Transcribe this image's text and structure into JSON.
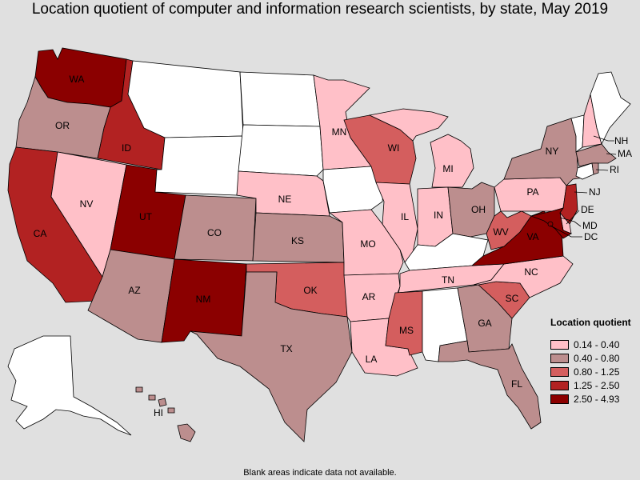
{
  "title": "Location quotient of computer and information research scientists, by state, May 2019",
  "footnote": "Blank areas indicate data not available.",
  "colors": {
    "none": "#ffffff",
    "c1": "#ffc0c8",
    "c2": "#bc8e8e",
    "c3": "#d45e5e",
    "c4": "#b22222",
    "c5": "#8b0000",
    "background": "#e0e0e0"
  },
  "legend": {
    "title": "Location quotient",
    "items": [
      {
        "label": "0.14 - 0.40",
        "color": "#ffc0c8"
      },
      {
        "label": "0.40 - 0.80",
        "color": "#bc8e8e"
      },
      {
        "label": "0.80 - 1.25",
        "color": "#d45e5e"
      },
      {
        "label": "1.25 - 2.50",
        "color": "#b22222"
      },
      {
        "label": "2.50 - 4.93",
        "color": "#8b0000"
      }
    ]
  },
  "states": {
    "WA": {
      "label": "WA",
      "class": "c5"
    },
    "OR": {
      "label": "OR",
      "class": "c2"
    },
    "CA": {
      "label": "CA",
      "class": "c4"
    },
    "ID": {
      "label": "ID",
      "class": "c4"
    },
    "NV": {
      "label": "NV",
      "class": "c1"
    },
    "UT": {
      "label": "UT",
      "class": "c5"
    },
    "AZ": {
      "label": "AZ",
      "class": "c2"
    },
    "MT": {
      "label": "",
      "class": "none"
    },
    "WY": {
      "label": "",
      "class": "none"
    },
    "CO": {
      "label": "CO",
      "class": "c2"
    },
    "NM": {
      "label": "NM",
      "class": "c5"
    },
    "ND": {
      "label": "",
      "class": "none"
    },
    "SD": {
      "label": "",
      "class": "none"
    },
    "NE": {
      "label": "NE",
      "class": "c1"
    },
    "KS": {
      "label": "KS",
      "class": "c2"
    },
    "OK": {
      "label": "OK",
      "class": "c3"
    },
    "TX": {
      "label": "TX",
      "class": "c2"
    },
    "MN": {
      "label": "MN",
      "class": "c1"
    },
    "IA": {
      "label": "",
      "class": "none"
    },
    "MO": {
      "label": "MO",
      "class": "c1"
    },
    "AR": {
      "label": "AR",
      "class": "c1"
    },
    "LA": {
      "label": "LA",
      "class": "c1"
    },
    "WI": {
      "label": "WI",
      "class": "c3"
    },
    "IL": {
      "label": "IL",
      "class": "c1"
    },
    "MI": {
      "label": "MI",
      "class": "c1"
    },
    "IN": {
      "label": "IN",
      "class": "c1"
    },
    "OH": {
      "label": "OH",
      "class": "c2"
    },
    "KY": {
      "label": "",
      "class": "none"
    },
    "TN": {
      "label": "TN",
      "class": "c1"
    },
    "MS": {
      "label": "MS",
      "class": "c3"
    },
    "AL": {
      "label": "",
      "class": "none"
    },
    "GA": {
      "label": "GA",
      "class": "c2"
    },
    "FL": {
      "label": "FL",
      "class": "c2"
    },
    "SC": {
      "label": "SC",
      "class": "c3"
    },
    "NC": {
      "label": "NC",
      "class": "c1"
    },
    "VA": {
      "label": "VA",
      "class": "c5"
    },
    "WV": {
      "label": "WV",
      "class": "c3"
    },
    "PA": {
      "label": "PA",
      "class": "c1"
    },
    "NY": {
      "label": "NY",
      "class": "c2"
    },
    "NJ": {
      "label": "NJ",
      "class": "c4"
    },
    "DE": {
      "label": "DE",
      "class": "c1"
    },
    "MD": {
      "label": "MD",
      "class": "c5"
    },
    "DC": {
      "label": "DC",
      "class": "c5"
    },
    "VT": {
      "label": "",
      "class": "none"
    },
    "NH": {
      "label": "NH",
      "class": "c1"
    },
    "ME": {
      "label": "",
      "class": "none"
    },
    "MA": {
      "label": "MA",
      "class": "c2"
    },
    "RI": {
      "label": "RI",
      "class": "c2"
    },
    "CT": {
      "label": "",
      "class": "none"
    },
    "AK": {
      "label": "",
      "class": "none"
    },
    "HI": {
      "label": "HI",
      "class": "c2"
    }
  }
}
